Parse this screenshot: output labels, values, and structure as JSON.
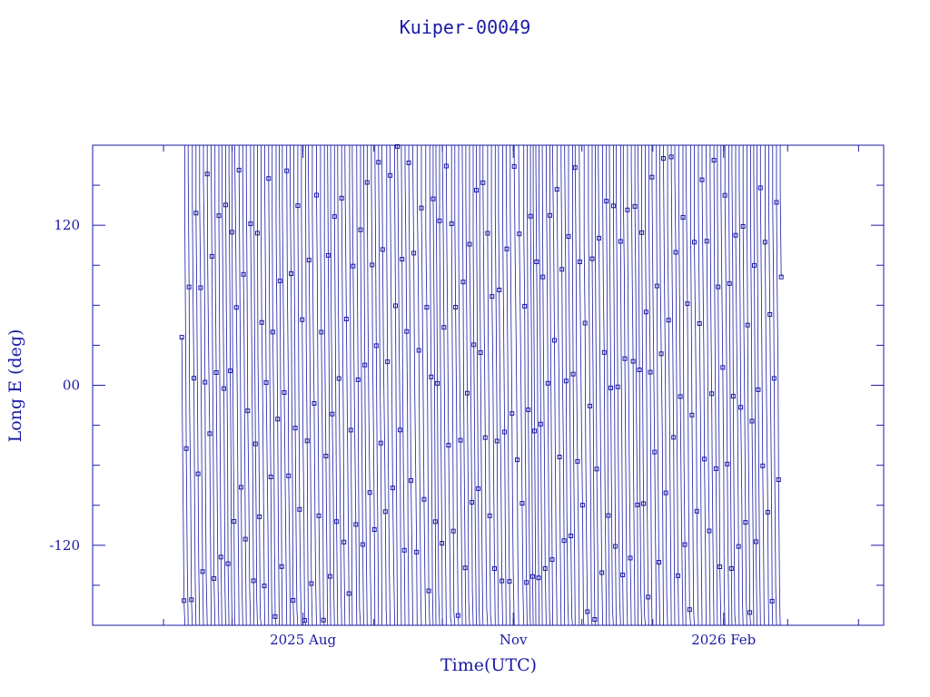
{
  "chart_data": {
    "type": "line",
    "title": "Kuiper-00049",
    "xlabel": "Time(UTC)",
    "ylabel": "Long E (deg)",
    "x_tick_labels": [
      "2025 Aug",
      "Nov",
      "2026 Feb"
    ],
    "x_tick_dates": [
      "2025-08-01",
      "2025-11-01",
      "2026-02-01"
    ],
    "xlim": [
      "2025-05-01",
      "2026-04-12"
    ],
    "ylim": [
      -180,
      180
    ],
    "y_ticks": [
      -120,
      0,
      120
    ],
    "y_tick_labels": [
      "-120",
      "00",
      "120"
    ],
    "grid": false,
    "legend": "none",
    "series": [
      {
        "x_start": "2025-06-09",
        "x_end": "2026-02-26",
        "y_start": 36,
        "wrap": [
          -180,
          180
        ],
        "marker": "square",
        "color": "#1a1aa6"
      }
    ]
  }
}
